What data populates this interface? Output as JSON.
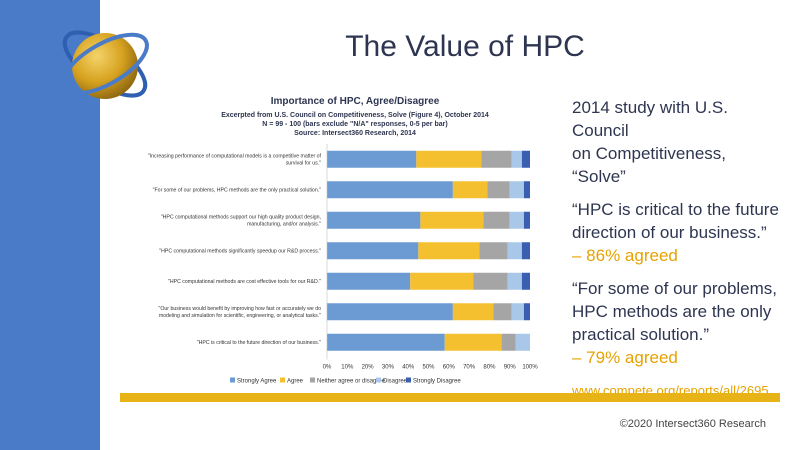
{
  "slide": {
    "title": "The Value of HPC",
    "copyright": "©2020 Intersect360 Research",
    "accent_color": "#e6a300",
    "sidebar_color": "#4a7bc8"
  },
  "right_panel": {
    "study_line1": "2014 study with U.S. Council",
    "study_line2": "on Competitiveness, “Solve”",
    "quote1_line1": "“HPC is critical to the future",
    "quote1_line2": "direction of our business.”",
    "quote1_pct": "– 86% agreed",
    "quote2_line1": "“For some of our problems,",
    "quote2_line2": "HPC methods are the only",
    "quote2_line3": "practical solution.”",
    "quote2_pct": "– 79% agreed",
    "url": "www.compete.org/reports/all/2695"
  },
  "chart_data": {
    "type": "bar",
    "orientation": "horizontal",
    "stacked": true,
    "title": "Importance of HPC, Agree/Disagree",
    "subtitle_lines": [
      "Excerpted from U.S. Council on Competitiveness, Solve (Figure 4), October 2014",
      "N = 99 - 100 (bars exclude \"N/A\" responses, 0-5 per bar)",
      "Source: Intersect360 Research, 2014"
    ],
    "categories": [
      [
        "\"Increasing performance of computational models is a competitive matter of",
        "survival for us.\""
      ],
      [
        "\"For some of our problems, HPC methods are the only practical solution.\""
      ],
      [
        "\"HPC computational methods support our high quality product design,",
        "manufacturing, and/or analysis.\""
      ],
      [
        "\"HPC computational methods significantly speedup our R&D process.\""
      ],
      [
        "\"HPC computational methods are cost effective tools for our R&D.\""
      ],
      [
        "\"Our business would benefit by improving how fast or accurately we do",
        "modeling and simulation for scientific, engineering, or analytical tasks.\""
      ],
      [
        "\"HPC is critical to the future direction of our business.\""
      ]
    ],
    "series": [
      {
        "name": "Strongly Agree",
        "color": "#6b9bd2",
        "values": [
          44,
          62,
          46,
          45,
          41,
          62,
          58
        ]
      },
      {
        "name": "Agree",
        "color": "#f5c030",
        "values": [
          32,
          17,
          31,
          30,
          31,
          20,
          28
        ]
      },
      {
        "name": "Neither agree or disagree",
        "color": "#a5a5a5",
        "values": [
          15,
          11,
          13,
          14,
          17,
          9,
          7
        ]
      },
      {
        "name": "Disagree",
        "color": "#a9c7e8",
        "values": [
          5,
          7,
          7,
          7,
          7,
          6,
          7
        ]
      },
      {
        "name": "Strongly Disagree",
        "color": "#3b5fb0",
        "values": [
          4,
          3,
          3,
          4,
          4,
          3,
          0
        ]
      }
    ],
    "x_ticks": [
      "0%",
      "10%",
      "20%",
      "30%",
      "40%",
      "50%",
      "60%",
      "70%",
      "80%",
      "90%",
      "100%"
    ],
    "xlim": [
      0,
      100
    ],
    "legend_position": "bottom",
    "grid": false
  }
}
